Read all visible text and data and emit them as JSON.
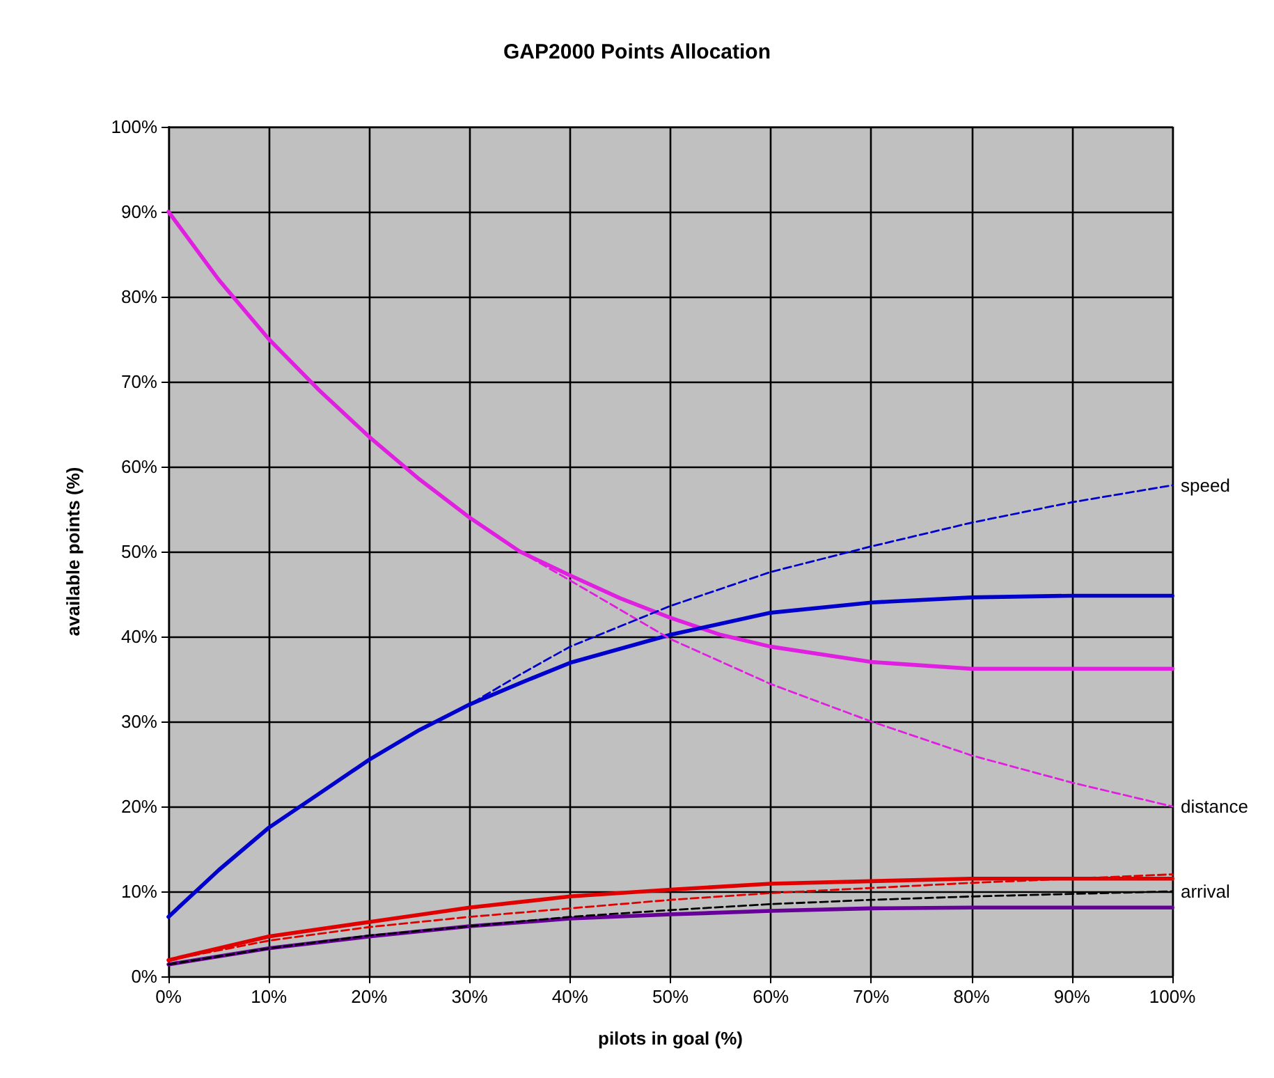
{
  "chart_data": {
    "type": "line",
    "title": "GAP2000 Points Allocation",
    "xlabel": "pilots in goal (%)",
    "ylabel": "available points (%)",
    "xlim": [
      0,
      100
    ],
    "ylim": [
      0,
      100
    ],
    "xticks": [
      {
        "value": 0,
        "label": "0%"
      },
      {
        "value": 10,
        "label": "10%"
      },
      {
        "value": 20,
        "label": "20%"
      },
      {
        "value": 30,
        "label": "30%"
      },
      {
        "value": 40,
        "label": "40%"
      },
      {
        "value": 50,
        "label": "50%"
      },
      {
        "value": 60,
        "label": "60%"
      },
      {
        "value": 70,
        "label": "70%"
      },
      {
        "value": 80,
        "label": "80%"
      },
      {
        "value": 90,
        "label": "90%"
      },
      {
        "value": 100,
        "label": "100%"
      }
    ],
    "yticks": [
      {
        "value": 0,
        "label": "0%"
      },
      {
        "value": 10,
        "label": "10%"
      },
      {
        "value": 20,
        "label": "20%"
      },
      {
        "value": 30,
        "label": "30%"
      },
      {
        "value": 40,
        "label": "40%"
      },
      {
        "value": 50,
        "label": "50%"
      },
      {
        "value": 60,
        "label": "60%"
      },
      {
        "value": 70,
        "label": "70%"
      },
      {
        "value": 80,
        "label": "80%"
      },
      {
        "value": 90,
        "label": "90%"
      },
      {
        "value": 100,
        "label": "100%"
      }
    ],
    "grid": true,
    "legend": false,
    "marker": "none",
    "series": [
      {
        "color": "#e020e0",
        "line_style": "solid",
        "x": [
          0,
          5,
          10,
          15,
          20,
          25,
          30,
          35,
          40,
          45,
          50,
          55,
          60,
          70,
          80,
          90,
          100
        ],
        "values": [
          90,
          82,
          75,
          69,
          63.5,
          58.5,
          54,
          50,
          47.2,
          44.5,
          42.2,
          40.2,
          38.8,
          37,
          36.2,
          36.2,
          36.2
        ]
      },
      {
        "name": "distance",
        "color": "#e020e0",
        "line_style": "dashed",
        "x": [
          0,
          5,
          10,
          15,
          20,
          25,
          30,
          35,
          40,
          50,
          60,
          70,
          80,
          90,
          100
        ],
        "values": [
          90,
          82,
          75,
          69,
          63.5,
          58.5,
          54,
          50,
          46.6,
          39.7,
          34.4,
          30,
          26,
          22.8,
          20
        ]
      },
      {
        "color": "#0000cc",
        "line_style": "solid",
        "x": [
          0,
          5,
          10,
          15,
          20,
          25,
          30,
          35,
          40,
          50,
          60,
          70,
          80,
          90,
          100
        ],
        "values": [
          7,
          12.5,
          17.5,
          21.5,
          25.5,
          29,
          32,
          34.5,
          36.9,
          40.2,
          42.8,
          44,
          44.6,
          44.8,
          44.8
        ]
      },
      {
        "name": "speed",
        "color": "#0000cc",
        "line_style": "dashed",
        "x": [
          0,
          5,
          10,
          15,
          20,
          25,
          30,
          35,
          40,
          50,
          60,
          70,
          80,
          90,
          100
        ],
        "values": [
          7,
          12.5,
          17.5,
          21.5,
          25.5,
          29,
          32,
          35.5,
          38.8,
          43.6,
          47.6,
          50.6,
          53.4,
          55.8,
          57.8
        ]
      },
      {
        "color": "#e00000",
        "line_style": "solid",
        "x": [
          0,
          10,
          20,
          30,
          40,
          50,
          60,
          70,
          80,
          90,
          100
        ],
        "values": [
          1.9,
          4.7,
          6.4,
          8.1,
          9.4,
          10.2,
          10.9,
          11.2,
          11.5,
          11.5,
          11.5
        ]
      },
      {
        "color": "#e00000",
        "line_style": "dashed",
        "x": [
          0,
          10,
          20,
          30,
          40,
          50,
          60,
          70,
          80,
          90,
          100
        ],
        "values": [
          1.9,
          4.2,
          5.8,
          7,
          8,
          9,
          9.8,
          10.4,
          11,
          11.5,
          12
        ]
      },
      {
        "color": "#660099",
        "line_style": "solid",
        "x": [
          0,
          10,
          20,
          30,
          40,
          50,
          60,
          70,
          80,
          90,
          100
        ],
        "values": [
          1.4,
          3.3,
          4.7,
          5.9,
          6.8,
          7.3,
          7.7,
          8,
          8.1,
          8.1,
          8.1
        ]
      },
      {
        "name": "arrival",
        "color": "#000000",
        "line_style": "dashed",
        "x": [
          0,
          10,
          20,
          30,
          40,
          50,
          60,
          70,
          80,
          90,
          100
        ],
        "values": [
          1.4,
          3.3,
          4.8,
          5.9,
          7,
          7.8,
          8.5,
          9,
          9.4,
          9.7,
          10
        ]
      }
    ]
  }
}
